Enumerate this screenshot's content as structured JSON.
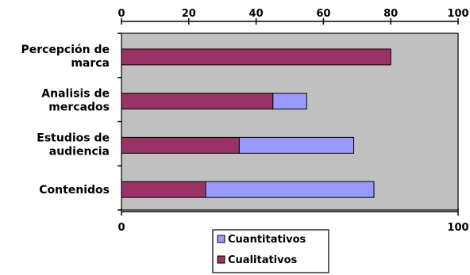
{
  "chart_data": {
    "type": "bar",
    "orientation": "horizontal",
    "stacked": true,
    "categories": [
      [
        "Percepción de",
        "marca"
      ],
      [
        "Analisis de",
        "mercados"
      ],
      [
        "Estudios de",
        "audiencia"
      ],
      [
        "Contenidos"
      ]
    ],
    "series": [
      {
        "name": "Cualitativos",
        "values": [
          80,
          45,
          35,
          25
        ],
        "color": "#993366"
      },
      {
        "name": "Cuantitativos",
        "values": [
          0,
          10,
          34,
          50
        ],
        "color": "#9999ff"
      }
    ],
    "xlim": [
      0,
      100
    ],
    "top_ticks": [
      "0",
      "20",
      "40",
      "60",
      "80",
      "100"
    ],
    "bottom_ticks": [
      "0",
      "100"
    ],
    "plot_background": "#c0c0c0",
    "grid": false,
    "legend": {
      "position": "bottom",
      "entries": [
        "Cuantitativos",
        "Cualitativos"
      ]
    }
  }
}
